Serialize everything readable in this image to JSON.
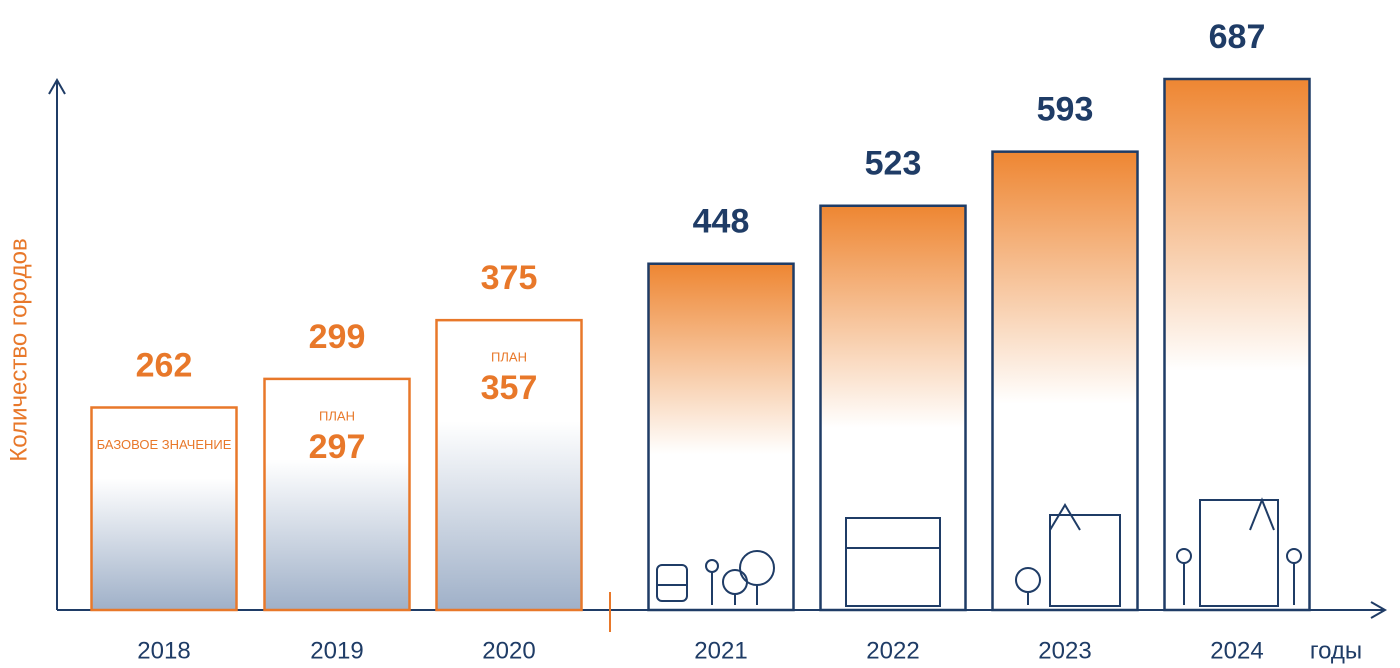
{
  "chart_data": {
    "type": "bar",
    "y_label": "Количество городов",
    "x_label": "годы",
    "categories": [
      "2018",
      "2019",
      "2020",
      "2021",
      "2022",
      "2023",
      "2024"
    ],
    "values": [
      262,
      299,
      375,
      448,
      523,
      593,
      687
    ],
    "colors": [
      "#e8782a",
      "#e8782a",
      "#e8782a",
      "#1f3c66",
      "#1f3c66",
      "#1f3c66",
      "#1f3c66"
    ],
    "inner_labels": [
      "БАЗОВОЕ ЗНАЧЕНИЕ",
      "ПЛАН",
      "ПЛАН",
      null,
      null,
      null,
      null
    ],
    "plan_values": [
      null,
      297,
      357,
      null,
      null,
      null,
      null
    ]
  }
}
